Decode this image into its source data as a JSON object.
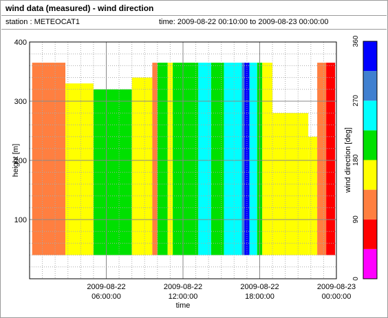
{
  "header": {
    "title": "wind data (measured) - wind direction",
    "station": "station : METEOCAT1",
    "time_range": "time: 2009-08-22 00:10:00 to 2009-08-23 00:00:00"
  },
  "chart_data": {
    "type": "heatmap",
    "title": "wind data (measured) - wind direction",
    "xlabel": "time",
    "ylabel": "height [m]",
    "xlim": [
      "2009-08-22 00:10:00",
      "2009-08-23 00:00:00"
    ],
    "ylim": [
      0,
      400
    ],
    "x_ticks": [
      {
        "line1": "2009-08-22",
        "line2": "06:00:00",
        "hour": 6
      },
      {
        "line1": "2009-08-22",
        "line2": "12:00:00",
        "hour": 12
      },
      {
        "line1": "2009-08-22",
        "line2": "18:00:00",
        "hour": 18
      },
      {
        "line1": "2009-08-23",
        "line2": "00:00:00",
        "hour": 24
      }
    ],
    "y_ticks": [
      100,
      200,
      300,
      400
    ],
    "grid": true,
    "colorbar": {
      "label": "wind direction [deg]",
      "range": [
        0,
        360
      ],
      "ticks": [
        0,
        90,
        180,
        270,
        360
      ],
      "bins": [
        {
          "from": 0,
          "to": 45,
          "color": "#ff00ff"
        },
        {
          "from": 45,
          "to": 90,
          "color": "#ff0000"
        },
        {
          "from": 90,
          "to": 135,
          "color": "#ff7f40"
        },
        {
          "from": 135,
          "to": 180,
          "color": "#ffff00"
        },
        {
          "from": 180,
          "to": 225,
          "color": "#00e000"
        },
        {
          "from": 225,
          "to": 270,
          "color": "#00ffff"
        },
        {
          "from": 270,
          "to": 315,
          "color": "#4080d0"
        },
        {
          "from": 315,
          "to": 360,
          "color": "#0000ff"
        }
      ]
    },
    "data_height_range_m": [
      40,
      365
    ],
    "columns": [
      {
        "hour_start": 0.2,
        "hour_end": 2.8,
        "dir": 112
      },
      {
        "hour_start": 2.8,
        "hour_end": 5.0,
        "dir": 158,
        "top_m": 330
      },
      {
        "hour_start": 5.0,
        "hour_end": 8.0,
        "dir": 200,
        "top_m": 320
      },
      {
        "hour_start": 8.0,
        "hour_end": 9.6,
        "dir": 158,
        "top_m": 340
      },
      {
        "hour_start": 9.6,
        "hour_end": 10.0,
        "dir": 112,
        "top_m": 365
      },
      {
        "hour_start": 10.0,
        "hour_end": 10.8,
        "dir": 200
      },
      {
        "hour_start": 10.8,
        "hour_end": 11.2,
        "dir": 158
      },
      {
        "hour_start": 11.2,
        "hour_end": 13.2,
        "dir": 200
      },
      {
        "hour_start": 13.2,
        "hour_end": 14.2,
        "dir": 245
      },
      {
        "hour_start": 14.2,
        "hour_end": 15.2,
        "dir": 200
      },
      {
        "hour_start": 15.2,
        "hour_end": 16.6,
        "dir": 245
      },
      {
        "hour_start": 16.6,
        "hour_end": 16.8,
        "dir": 290
      },
      {
        "hour_start": 16.8,
        "hour_end": 17.2,
        "dir": 335
      },
      {
        "hour_start": 17.2,
        "hour_end": 17.8,
        "dir": 245
      },
      {
        "hour_start": 17.8,
        "hour_end": 18.2,
        "dir": 200
      },
      {
        "hour_start": 18.2,
        "hour_end": 19.0,
        "dir": 158
      },
      {
        "hour_start": 19.0,
        "hour_end": 21.8,
        "dir": 158,
        "top_m": 280
      },
      {
        "hour_start": 21.8,
        "hour_end": 22.5,
        "dir": 158,
        "top_m": 240
      },
      {
        "hour_start": 22.5,
        "hour_end": 23.2,
        "dir": 112
      },
      {
        "hour_start": 23.2,
        "hour_end": 23.9,
        "dir": 68
      }
    ]
  }
}
